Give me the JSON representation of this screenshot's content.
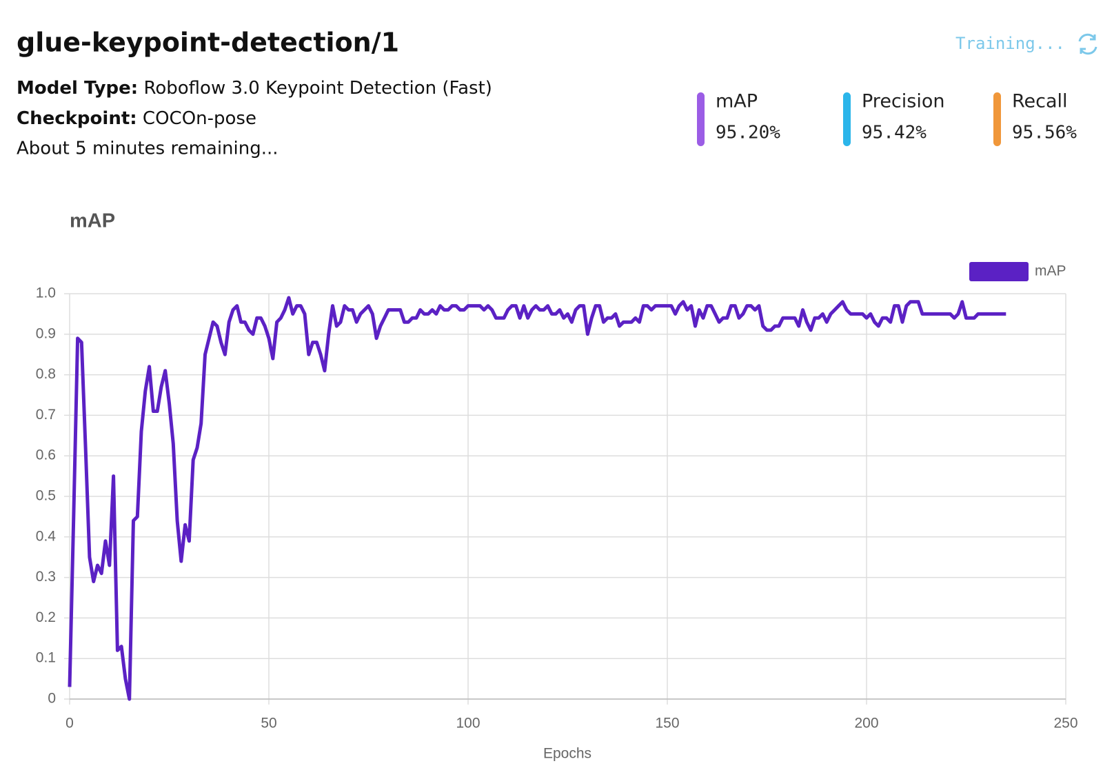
{
  "header": {
    "title": "glue-keypoint-detection/1",
    "model_type_label": "Model Type:",
    "model_type": "Roboflow 3.0 Keypoint Detection (Fast)",
    "checkpoint_label": "Checkpoint:",
    "checkpoint": "COCOn-pose",
    "remaining": "About 5 minutes remaining...",
    "status": "Training..."
  },
  "metrics": [
    {
      "name": "mAP",
      "value": "95.20%",
      "color": "#9b5de5"
    },
    {
      "name": "Precision",
      "value": "95.42%",
      "color": "#2bb5ea"
    },
    {
      "name": "Recall",
      "value": "95.56%",
      "color": "#f0973a"
    }
  ],
  "chart_data": {
    "type": "line",
    "title": "mAP",
    "x_label": "Epochs",
    "grid": true,
    "legend": "top-right",
    "xlim": [
      0,
      250
    ],
    "xticks": [
      0,
      50,
      100,
      150,
      200,
      250
    ],
    "ylim": [
      0,
      1
    ],
    "yticks": [
      0,
      0.1,
      0.2,
      0.3,
      0.4,
      0.5,
      0.6,
      0.7,
      0.8,
      0.9,
      {
        "value": 1,
        "label": "1.0"
      }
    ],
    "x": [
      0,
      1,
      2,
      3,
      4,
      5,
      6,
      7,
      8,
      9,
      10,
      11,
      12,
      13,
      14,
      15,
      16,
      17,
      18,
      19,
      20,
      21,
      22,
      23,
      24,
      25,
      26,
      27,
      28,
      29,
      30,
      31,
      32,
      33,
      34,
      35,
      36,
      37,
      38,
      39,
      40,
      41,
      42,
      43,
      44,
      45,
      46,
      47,
      48,
      49,
      50,
      51,
      52,
      53,
      54,
      55,
      56,
      57,
      58,
      59,
      60,
      61,
      62,
      63,
      64,
      65,
      66,
      67,
      68,
      69,
      70,
      71,
      72,
      73,
      74,
      75,
      76,
      77,
      78,
      79,
      80,
      81,
      82,
      83,
      84,
      85,
      86,
      87,
      88,
      89,
      90,
      91,
      92,
      93,
      94,
      95,
      96,
      97,
      98,
      99,
      100,
      101,
      102,
      103,
      104,
      105,
      106,
      107,
      108,
      109,
      110,
      111,
      112,
      113,
      114,
      115,
      116,
      117,
      118,
      119,
      120,
      121,
      122,
      123,
      124,
      125,
      126,
      127,
      128,
      129,
      130,
      131,
      132,
      133,
      134,
      135,
      136,
      137,
      138,
      139,
      140,
      141,
      142,
      143,
      144,
      145,
      146,
      147,
      148,
      149,
      150,
      151,
      152,
      153,
      154,
      155,
      156,
      157,
      158,
      159,
      160,
      161,
      162,
      163,
      164,
      165,
      166,
      167,
      168,
      169,
      170,
      171,
      172,
      173,
      174,
      175,
      176,
      177,
      178,
      179,
      180,
      181,
      182,
      183,
      184,
      185,
      186,
      187,
      188,
      189,
      190,
      191,
      192,
      193,
      194,
      195,
      196,
      197,
      198,
      199,
      200,
      201,
      202,
      203,
      204,
      205,
      206,
      207,
      208,
      209,
      210,
      211,
      212,
      213,
      214,
      215,
      216,
      217,
      218,
      219,
      220,
      221,
      222,
      223,
      224,
      225,
      226,
      227,
      228,
      229,
      230,
      231,
      232,
      233,
      234,
      235
    ],
    "series": [
      {
        "name": "mAP",
        "color": "#5b21c4",
        "values": [
          0.03,
          0.45,
          0.89,
          0.88,
          0.62,
          0.35,
          0.29,
          0.33,
          0.31,
          0.39,
          0.33,
          0.55,
          0.12,
          0.13,
          0.05,
          0.0,
          0.44,
          0.45,
          0.66,
          0.76,
          0.82,
          0.71,
          0.71,
          0.77,
          0.81,
          0.73,
          0.63,
          0.44,
          0.34,
          0.43,
          0.39,
          0.59,
          0.62,
          0.68,
          0.85,
          0.89,
          0.93,
          0.92,
          0.88,
          0.85,
          0.93,
          0.96,
          0.97,
          0.93,
          0.93,
          0.91,
          0.9,
          0.94,
          0.94,
          0.92,
          0.89,
          0.84,
          0.93,
          0.94,
          0.96,
          0.99,
          0.95,
          0.97,
          0.97,
          0.95,
          0.85,
          0.88,
          0.88,
          0.85,
          0.81,
          0.9,
          0.97,
          0.92,
          0.93,
          0.97,
          0.96,
          0.96,
          0.93,
          0.95,
          0.96,
          0.97,
          0.95,
          0.89,
          0.92,
          0.94,
          0.96,
          0.96,
          0.96,
          0.96,
          0.93,
          0.93,
          0.94,
          0.94,
          0.96,
          0.95,
          0.95,
          0.96,
          0.95,
          0.97,
          0.96,
          0.96,
          0.97,
          0.97,
          0.96,
          0.96,
          0.97,
          0.97,
          0.97,
          0.97,
          0.96,
          0.97,
          0.96,
          0.94,
          0.94,
          0.94,
          0.96,
          0.97,
          0.97,
          0.94,
          0.97,
          0.94,
          0.96,
          0.97,
          0.96,
          0.96,
          0.97,
          0.95,
          0.95,
          0.96,
          0.94,
          0.95,
          0.93,
          0.96,
          0.97,
          0.97,
          0.9,
          0.94,
          0.97,
          0.97,
          0.93,
          0.94,
          0.94,
          0.95,
          0.92,
          0.93,
          0.93,
          0.93,
          0.94,
          0.93,
          0.97,
          0.97,
          0.96,
          0.97,
          0.97,
          0.97,
          0.97,
          0.97,
          0.95,
          0.97,
          0.98,
          0.96,
          0.97,
          0.92,
          0.96,
          0.94,
          0.97,
          0.97,
          0.95,
          0.93,
          0.94,
          0.94,
          0.97,
          0.97,
          0.94,
          0.95,
          0.97,
          0.97,
          0.96,
          0.97,
          0.92,
          0.91,
          0.91,
          0.92,
          0.92,
          0.94,
          0.94,
          0.94,
          0.94,
          0.92,
          0.96,
          0.93,
          0.91,
          0.94,
          0.94,
          0.95,
          0.93,
          0.95,
          0.96,
          0.97,
          0.98,
          0.96,
          0.95,
          0.95,
          0.95,
          0.95,
          0.94,
          0.95,
          0.93,
          0.92,
          0.94,
          0.94,
          0.93,
          0.97,
          0.97,
          0.93,
          0.97,
          0.98,
          0.98,
          0.98,
          0.95,
          0.95,
          0.95,
          0.95,
          0.95,
          0.95,
          0.95,
          0.95,
          0.94,
          0.95,
          0.98,
          0.94,
          0.94,
          0.94,
          0.95,
          0.95,
          0.95,
          0.95,
          0.95,
          0.95,
          0.95,
          0.95
        ]
      }
    ]
  }
}
